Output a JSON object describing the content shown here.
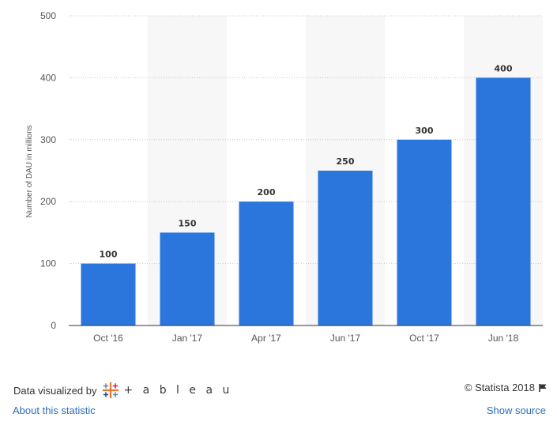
{
  "chart_data": {
    "type": "bar",
    "categories": [
      "Oct '16",
      "Jan '17",
      "Apr '17",
      "Jun '17",
      "Oct '17",
      "Jun '18"
    ],
    "values": [
      100,
      150,
      200,
      250,
      300,
      400
    ],
    "data_labels": [
      "100",
      "150",
      "200",
      "250",
      "300",
      "400"
    ],
    "title": "",
    "xlabel": "",
    "ylabel": "Number of DAU in millions",
    "ylim": [
      0,
      500
    ],
    "yticks": [
      0,
      100,
      200,
      300,
      400,
      500
    ],
    "grid": true,
    "bar_color": "#2a76dd",
    "band_color": "#f7f7f7"
  },
  "footer": {
    "credit_text": "Data visualized by",
    "brand_name": "+ a b l e a u",
    "brand_icon": "tableau-logo-icon",
    "about_link": "About this statistic",
    "copyright": "© Statista 2018",
    "flag_icon": "flag-icon",
    "show_source_link": "Show source",
    "link_color": "#2a6ebb"
  }
}
